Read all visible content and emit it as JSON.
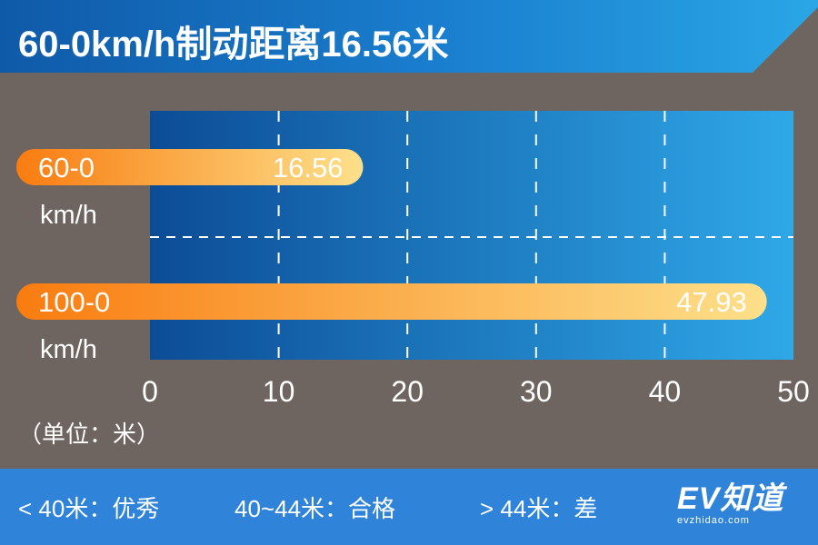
{
  "header": {
    "title": "60-0km/h制动距离16.56米"
  },
  "unit_label": "（单位：米）",
  "legend": {
    "good": "< 40米：优秀",
    "pass": "40~44米：合格",
    "poor": "> 44米：差"
  },
  "logo": {
    "text": "EV知道",
    "url": "evzhidao.com"
  },
  "colors": {
    "background": "#6e6561",
    "plot_dark": "#0c4c96",
    "plot_light": "#2fa8e8",
    "bar_start": "#f97c10",
    "bar_end": "#fde08a",
    "footer": "#2f84d9"
  },
  "chart_data": {
    "type": "bar",
    "orientation": "horizontal",
    "categories": [
      {
        "line1": "60-0",
        "line2": "km/h"
      },
      {
        "line1": "100-0",
        "line2": "km/h"
      }
    ],
    "values": [
      16.56,
      47.93
    ],
    "value_labels": [
      "16.56",
      "47.93"
    ],
    "xlim": [
      0,
      50
    ],
    "xticks": [
      0,
      10,
      20,
      30,
      40,
      50
    ],
    "grid": true,
    "unit": "米"
  }
}
